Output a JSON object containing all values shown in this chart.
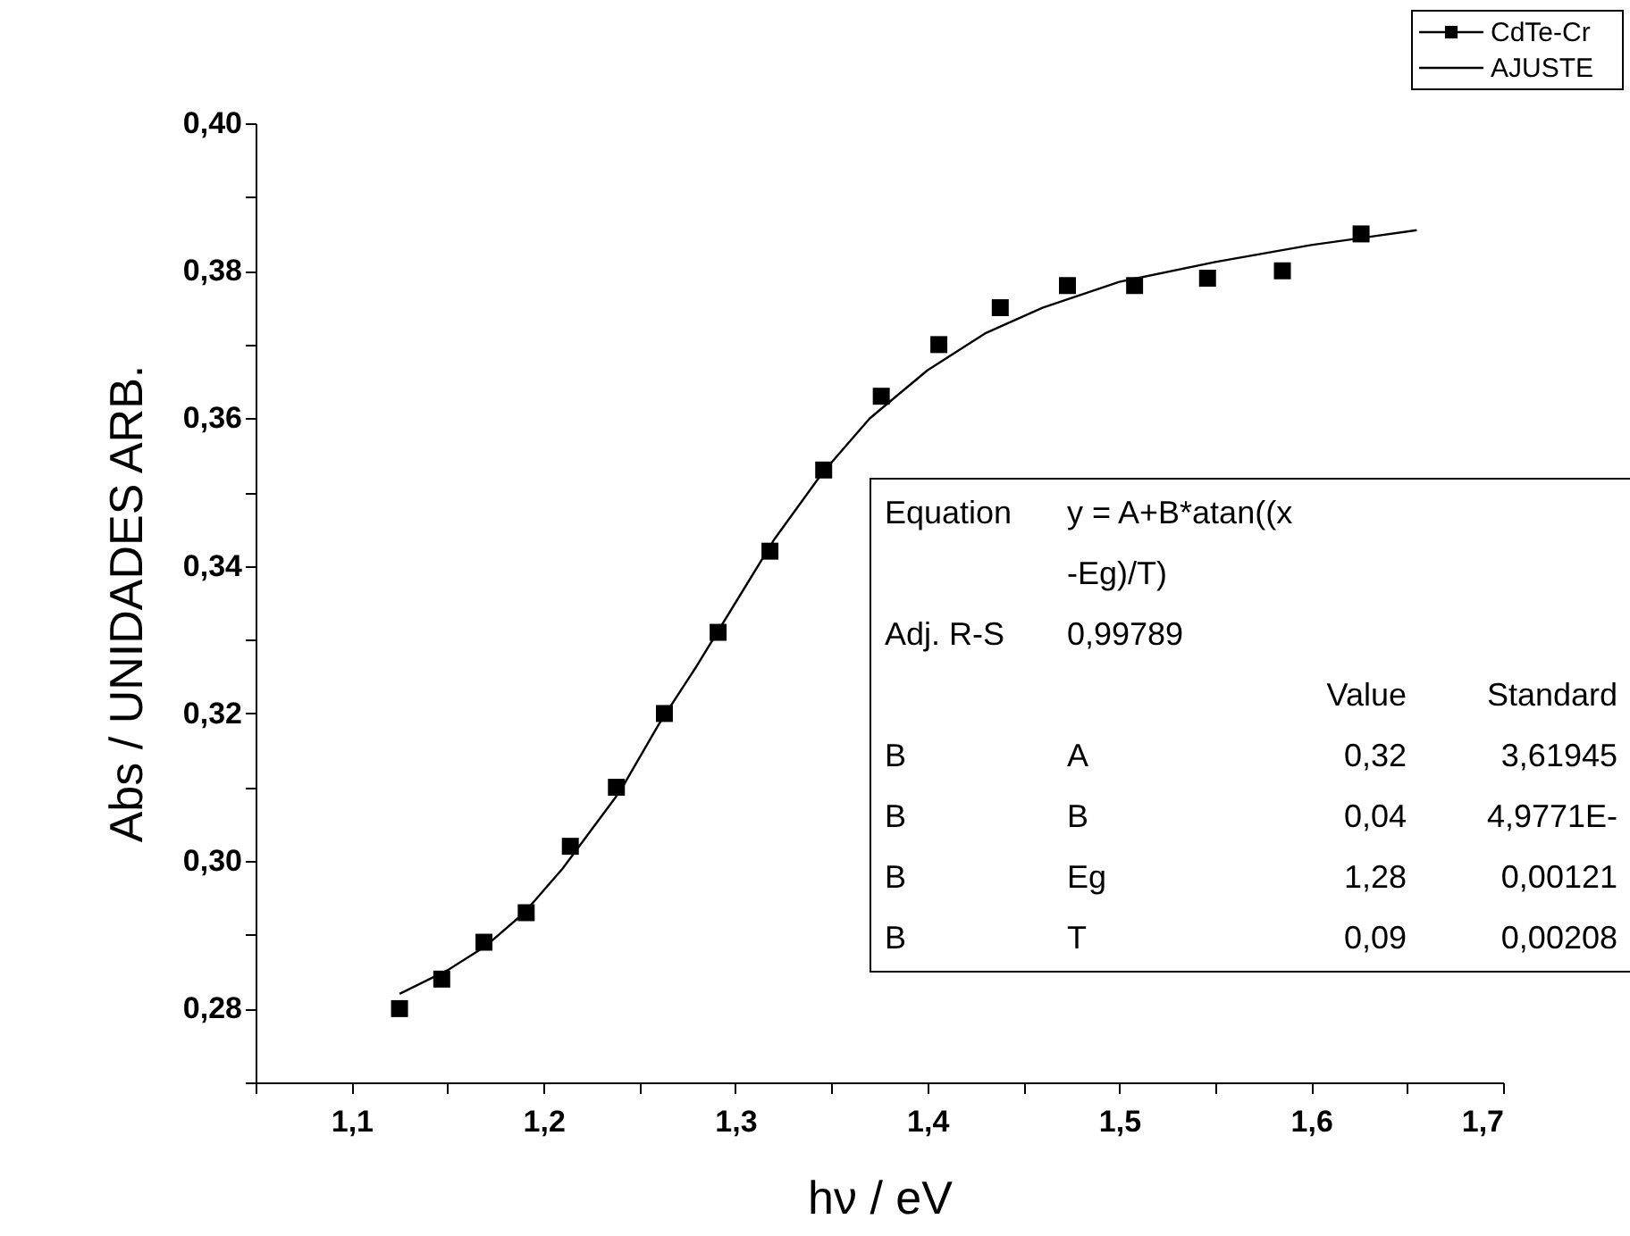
{
  "chart_data": {
    "type": "scatter",
    "xlabel": "hν / eV",
    "ylabel": "Abs / UNIDADES ARB.",
    "xlim": [
      1.05,
      1.7
    ],
    "ylim": [
      0.27,
      0.4
    ],
    "xticks": [
      {
        "value": 1.05,
        "label": null
      },
      {
        "value": 1.1,
        "label": "1,1"
      },
      {
        "value": 1.15,
        "label": null
      },
      {
        "value": 1.2,
        "label": "1,2"
      },
      {
        "value": 1.25,
        "label": null
      },
      {
        "value": 1.3,
        "label": "1,3"
      },
      {
        "value": 1.35,
        "label": null
      },
      {
        "value": 1.4,
        "label": "1,4"
      },
      {
        "value": 1.45,
        "label": null
      },
      {
        "value": 1.5,
        "label": "1,5"
      },
      {
        "value": 1.55,
        "label": null
      },
      {
        "value": 1.6,
        "label": "1,6"
      },
      {
        "value": 1.65,
        "label": null
      },
      {
        "value": 1.7,
        "label": "1,7"
      }
    ],
    "yticks": [
      {
        "value": 0.27,
        "label": null
      },
      {
        "value": 0.28,
        "label": "0,28"
      },
      {
        "value": 0.29,
        "label": null
      },
      {
        "value": 0.3,
        "label": "0,30"
      },
      {
        "value": 0.31,
        "label": null
      },
      {
        "value": 0.32,
        "label": "0,32"
      },
      {
        "value": 0.33,
        "label": null
      },
      {
        "value": 0.34,
        "label": "0,34"
      },
      {
        "value": 0.35,
        "label": null
      },
      {
        "value": 0.36,
        "label": "0,36"
      },
      {
        "value": 0.37,
        "label": null
      },
      {
        "value": 0.38,
        "label": "0,38"
      },
      {
        "value": 0.39,
        "label": null
      },
      {
        "value": 0.4,
        "label": "0,40"
      }
    ],
    "grid": false,
    "legend": "top right",
    "series": [
      {
        "name": "CdTe-Cr",
        "marker": "square",
        "color": "#000000",
        "x": [
          1.125,
          1.147,
          1.169,
          1.191,
          1.214,
          1.238,
          1.263,
          1.291,
          1.318,
          1.346,
          1.376,
          1.406,
          1.438,
          1.473,
          1.508,
          1.546,
          1.585,
          1.626
        ],
        "values": [
          0.28,
          0.284,
          0.289,
          0.293,
          0.302,
          0.31,
          0.32,
          0.331,
          0.342,
          0.353,
          0.363,
          0.37,
          0.375,
          0.378,
          0.378,
          0.379,
          0.38,
          0.385
        ]
      },
      {
        "name": "AJUSTE",
        "type": "line",
        "marker": "none",
        "line_style": "solid",
        "color": "#000000",
        "x": [
          1.125,
          1.15,
          1.17,
          1.19,
          1.21,
          1.24,
          1.26,
          1.28,
          1.3,
          1.32,
          1.345,
          1.37,
          1.4,
          1.43,
          1.46,
          1.5,
          1.55,
          1.6,
          1.655
        ],
        "values": [
          0.282,
          0.2852,
          0.2885,
          0.293,
          0.299,
          0.3095,
          0.3185,
          0.3265,
          0.335,
          0.3435,
          0.3525,
          0.36,
          0.3665,
          0.3715,
          0.375,
          0.3785,
          0.3812,
          0.3835,
          0.3855
        ]
      }
    ],
    "annotations": [
      "Equation\ty = A+B*atan((x",
      "\t-Eg)/T)",
      "Adj. R-S\t  0,99789",
      "\t\tValue\tStandard",
      "B\tA\t0,32\t3,61945",
      "B\tB\t0,04\t4,9771E-",
      "B\tEg\t1,28\t0,00121",
      "B\tT\t0,09\t0,00208"
    ]
  }
}
